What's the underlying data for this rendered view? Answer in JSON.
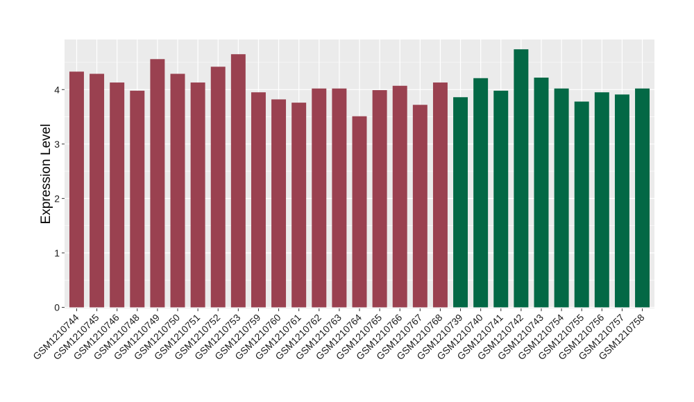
{
  "chart_data": {
    "type": "bar",
    "title": "",
    "xlabel": "",
    "ylabel": "Expression Level",
    "ylim": [
      -0.02,
      4.92
    ],
    "yticks": [
      0,
      1,
      2,
      3,
      4
    ],
    "grid": true,
    "legend": "none",
    "colors": {
      "group_a": "#9a4150",
      "group_b": "#036845",
      "panel": "#ebebeb",
      "gridline": "#ffffff"
    },
    "categories": [
      "GSM1210744",
      "GSM1210745",
      "GSM1210746",
      "GSM1210748",
      "GSM1210749",
      "GSM1210750",
      "GSM1210751",
      "GSM1210752",
      "GSM1210753",
      "GSM1210759",
      "GSM1210760",
      "GSM1210761",
      "GSM1210762",
      "GSM1210763",
      "GSM1210764",
      "GSM1210765",
      "GSM1210766",
      "GSM1210767",
      "GSM1210768",
      "GSM1210739",
      "GSM1210740",
      "GSM1210741",
      "GSM1210742",
      "GSM1210743",
      "GSM1210754",
      "GSM1210755",
      "GSM1210756",
      "GSM1210757",
      "GSM1210758"
    ],
    "values": [
      4.33,
      4.29,
      4.13,
      3.98,
      4.56,
      4.29,
      4.13,
      4.42,
      4.65,
      3.95,
      3.82,
      3.76,
      4.02,
      4.02,
      3.51,
      3.99,
      4.07,
      3.72,
      4.13,
      3.86,
      4.21,
      3.98,
      4.74,
      4.22,
      4.02,
      3.78,
      3.95,
      3.91,
      4.02
    ],
    "groups": [
      "a",
      "a",
      "a",
      "a",
      "a",
      "a",
      "a",
      "a",
      "a",
      "a",
      "a",
      "a",
      "a",
      "a",
      "a",
      "a",
      "a",
      "a",
      "a",
      "b",
      "b",
      "b",
      "b",
      "b",
      "b",
      "b",
      "b",
      "b",
      "b"
    ]
  }
}
